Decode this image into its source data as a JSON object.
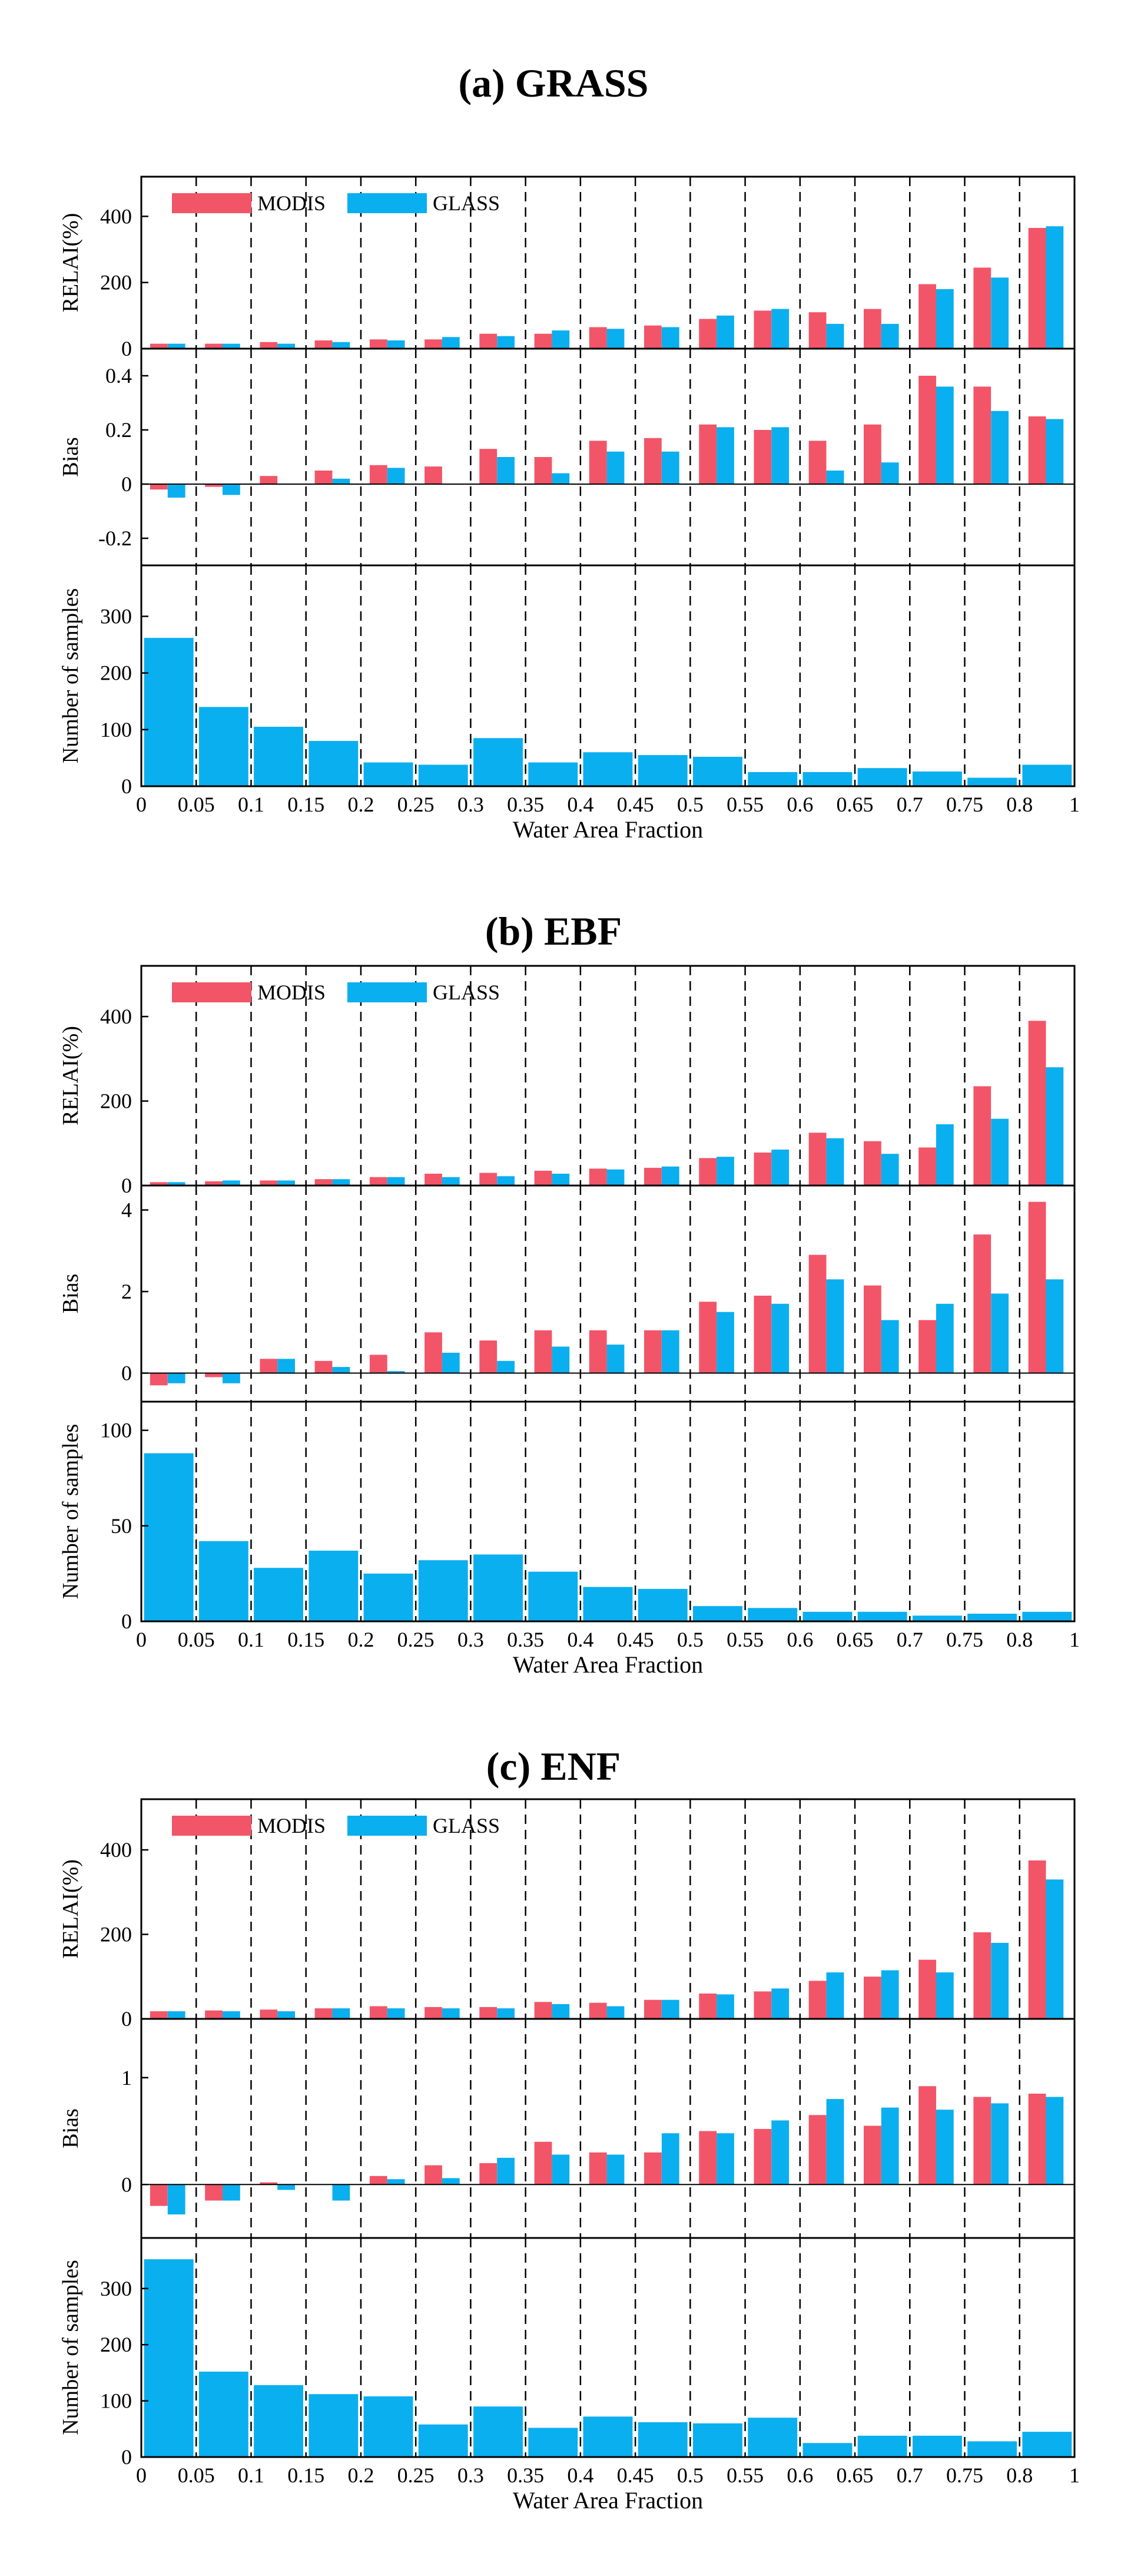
{
  "colors": {
    "modis": "#f25568",
    "glass": "#0aafef"
  },
  "chart_data": [
    {
      "type": "bar",
      "title": "(a) GRASS",
      "xlabel": "Water Area Fraction",
      "x_ticks": [
        "0",
        "0.05",
        "0.1",
        "0.15",
        "0.2",
        "0.25",
        "0.3",
        "0.35",
        "0.4",
        "0.45",
        "0.5",
        "0.55",
        "0.6",
        "0.65",
        "0.7",
        "0.75",
        "0.8",
        "1"
      ],
      "legend": [
        "MODIS",
        "GLASS"
      ],
      "subplots": [
        {
          "ylabel": "RELAI(%)",
          "ylim": [
            0,
            520
          ],
          "yticks": [
            0,
            200,
            400
          ],
          "ytick_labels": [
            "0",
            "200",
            "400"
          ],
          "series": [
            {
              "name": "MODIS",
              "values": [
                15,
                15,
                20,
                25,
                28,
                28,
                45,
                45,
                65,
                70,
                90,
                115,
                110,
                120,
                195,
                245,
                365
              ]
            },
            {
              "name": "GLASS",
              "values": [
                15,
                15,
                15,
                20,
                25,
                35,
                38,
                55,
                60,
                65,
                100,
                120,
                75,
                75,
                180,
                215,
                370
              ]
            }
          ]
        },
        {
          "ylabel": "Bias",
          "ylim": [
            -0.3,
            0.5
          ],
          "yticks": [
            -0.2,
            0,
            0.2,
            0.4
          ],
          "ytick_labels": [
            "-0.2",
            "0",
            "0.2",
            "0.4"
          ],
          "series": [
            {
              "name": "MODIS",
              "values": [
                -0.02,
                -0.01,
                0.03,
                0.05,
                0.07,
                0.065,
                0.13,
                0.1,
                0.16,
                0.17,
                0.22,
                0.2,
                0.16,
                0.22,
                0.4,
                0.36,
                0.25
              ]
            },
            {
              "name": "GLASS",
              "values": [
                -0.05,
                -0.04,
                0.0,
                0.02,
                0.06,
                0.0,
                0.1,
                0.04,
                0.12,
                0.12,
                0.21,
                0.21,
                0.05,
                0.08,
                0.36,
                0.27,
                0.24
              ]
            }
          ]
        },
        {
          "ylabel": "Number of samples",
          "ylim": [
            0,
            390
          ],
          "yticks": [
            0,
            100,
            200,
            300
          ],
          "ytick_labels": [
            "0",
            "100",
            "200",
            "300"
          ],
          "series": [
            {
              "name": "GLASS",
              "values": [
                262,
                140,
                105,
                80,
                42,
                38,
                85,
                42,
                60,
                55,
                52,
                25,
                25,
                32,
                26,
                15,
                38
              ]
            }
          ]
        }
      ]
    },
    {
      "type": "bar",
      "title": "(b) EBF",
      "xlabel": "Water Area Fraction",
      "x_ticks": [
        "0",
        "0.05",
        "0.1",
        "0.15",
        "0.2",
        "0.25",
        "0.3",
        "0.35",
        "0.4",
        "0.45",
        "0.5",
        "0.55",
        "0.6",
        "0.65",
        "0.7",
        "0.75",
        "0.8",
        "1"
      ],
      "legend": [
        "MODIS",
        "GLASS"
      ],
      "subplots": [
        {
          "ylabel": "RELAI(%)",
          "ylim": [
            0,
            520
          ],
          "yticks": [
            0,
            200,
            400
          ],
          "ytick_labels": [
            "0",
            "200",
            "400"
          ],
          "series": [
            {
              "name": "MODIS",
              "values": [
                8,
                10,
                12,
                15,
                20,
                28,
                30,
                35,
                40,
                42,
                65,
                78,
                125,
                105,
                90,
                235,
                390
              ]
            },
            {
              "name": "GLASS",
              "values": [
                8,
                12,
                12,
                15,
                20,
                20,
                22,
                28,
                38,
                45,
                68,
                85,
                112,
                75,
                145,
                158,
                280
              ]
            }
          ]
        },
        {
          "ylabel": "Bias",
          "ylim": [
            -0.7,
            4.6
          ],
          "yticks": [
            0,
            2,
            4
          ],
          "ytick_labels": [
            "0",
            "2",
            "4"
          ],
          "series": [
            {
              "name": "MODIS",
              "values": [
                -0.3,
                -0.1,
                0.35,
                0.3,
                0.45,
                1.0,
                0.8,
                1.05,
                1.05,
                1.05,
                1.75,
                1.9,
                2.9,
                2.15,
                1.3,
                3.4,
                4.2
              ]
            },
            {
              "name": "GLASS",
              "values": [
                -0.25,
                -0.25,
                0.35,
                0.15,
                0.05,
                0.5,
                0.3,
                0.65,
                0.7,
                1.05,
                1.5,
                1.7,
                2.3,
                1.3,
                1.7,
                1.95,
                2.3
              ]
            }
          ]
        },
        {
          "ylabel": "Number of samples",
          "ylim": [
            0,
            115
          ],
          "yticks": [
            0,
            50,
            100
          ],
          "ytick_labels": [
            "0",
            "50",
            "100"
          ],
          "series": [
            {
              "name": "GLASS",
              "values": [
                88,
                42,
                28,
                37,
                25,
                32,
                35,
                26,
                18,
                17,
                8,
                7,
                5,
                5,
                3,
                4,
                5
              ]
            }
          ]
        }
      ]
    },
    {
      "type": "bar",
      "title": "(c) ENF",
      "xlabel": "Water Area Fraction",
      "x_ticks": [
        "0",
        "0.05",
        "0.1",
        "0.15",
        "0.2",
        "0.25",
        "0.3",
        "0.35",
        "0.4",
        "0.45",
        "0.5",
        "0.55",
        "0.6",
        "0.65",
        "0.7",
        "0.75",
        "0.8",
        "1"
      ],
      "legend": [
        "MODIS",
        "GLASS"
      ],
      "subplots": [
        {
          "ylabel": "RELAI(%)",
          "ylim": [
            0,
            520
          ],
          "yticks": [
            0,
            200,
            400
          ],
          "ytick_labels": [
            "0",
            "200",
            "400"
          ],
          "series": [
            {
              "name": "MODIS",
              "values": [
                18,
                20,
                22,
                25,
                30,
                28,
                28,
                40,
                38,
                45,
                60,
                65,
                90,
                100,
                140,
                205,
                375
              ]
            },
            {
              "name": "GLASS",
              "values": [
                18,
                18,
                18,
                25,
                25,
                25,
                25,
                35,
                30,
                45,
                58,
                72,
                110,
                115,
                110,
                180,
                330
              ]
            }
          ]
        },
        {
          "ylabel": "Bias",
          "ylim": [
            -0.5,
            1.55
          ],
          "yticks": [
            0,
            1
          ],
          "ytick_labels": [
            "0",
            "1"
          ],
          "series": [
            {
              "name": "MODIS",
              "values": [
                -0.2,
                -0.15,
                0.02,
                0.0,
                0.08,
                0.18,
                0.2,
                0.4,
                0.3,
                0.3,
                0.5,
                0.52,
                0.65,
                0.55,
                0.92,
                0.82,
                0.85
              ]
            },
            {
              "name": "GLASS",
              "values": [
                -0.28,
                -0.15,
                -0.05,
                -0.15,
                0.05,
                0.06,
                0.25,
                0.28,
                0.28,
                0.48,
                0.48,
                0.6,
                0.8,
                0.72,
                0.7,
                0.76,
                0.82
              ]
            }
          ]
        },
        {
          "ylabel": "Number of samples",
          "ylim": [
            0,
            390
          ],
          "yticks": [
            0,
            100,
            200,
            300
          ],
          "ytick_labels": [
            "0",
            "100",
            "200",
            "300"
          ],
          "series": [
            {
              "name": "GLASS",
              "values": [
                352,
                152,
                128,
                112,
                108,
                58,
                90,
                52,
                72,
                62,
                60,
                70,
                25,
                38,
                38,
                28,
                45
              ]
            }
          ]
        }
      ]
    }
  ]
}
